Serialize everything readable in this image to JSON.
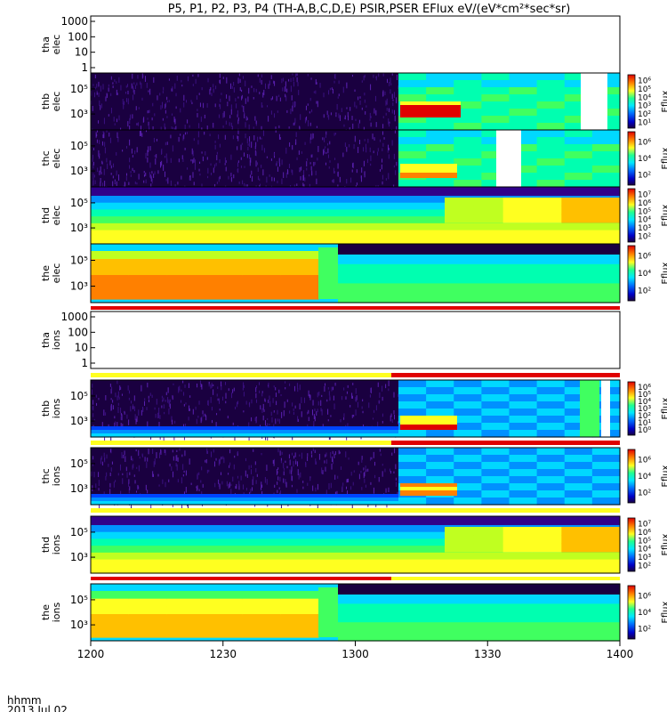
{
  "title": "P5, P1, P2, P3, P4 (TH-A,B,C,D,E) PSIR,PSER EFlux eV/(eV*cm²*sec*sr)",
  "footer": {
    "time_format": "hhmm",
    "date": "2013 Jul 02"
  },
  "x_axis": {
    "ticks": [
      "1200",
      "1230",
      "1300",
      "1330",
      "1400"
    ]
  },
  "colorbar_label": "Eflux",
  "chart_data": [
    {
      "type": "heatmap",
      "probe": "tha",
      "species": "elec",
      "ylabel_lines": [
        "tha",
        "elec"
      ],
      "yticks": [
        "1",
        "10",
        "100",
        "1000"
      ],
      "has_data": false
    },
    {
      "type": "heatmap",
      "probe": "thb",
      "species": "elec",
      "ylabel_lines": [
        "thb",
        "elec"
      ],
      "yticks": [
        "10³",
        "10⁵"
      ],
      "colorbar_ticks": [
        "10¹",
        "10²",
        "10³",
        "10⁴",
        "10⁵",
        "10⁶"
      ],
      "has_data": true
    },
    {
      "type": "heatmap",
      "probe": "thc",
      "species": "elec",
      "ylabel_lines": [
        "thc",
        "elec"
      ],
      "yticks": [
        "10³",
        "10⁵"
      ],
      "colorbar_ticks": [
        "10²",
        "10⁴",
        "10⁶"
      ],
      "has_data": true
    },
    {
      "type": "heatmap",
      "probe": "thd",
      "species": "elec",
      "ylabel_lines": [
        "thd",
        "elec"
      ],
      "yticks": [
        "10³",
        "10⁵"
      ],
      "colorbar_ticks": [
        "10²",
        "10³",
        "10⁴",
        "10⁵",
        "10⁶",
        "10⁷"
      ],
      "has_data": true
    },
    {
      "type": "heatmap",
      "probe": "the",
      "species": "elec",
      "ylabel_lines": [
        "the",
        "elec"
      ],
      "yticks": [
        "10³",
        "10⁵"
      ],
      "colorbar_ticks": [
        "10²",
        "10⁴",
        "10⁶"
      ],
      "has_data": true
    },
    {
      "type": "heatmap",
      "probe": "tha",
      "species": "ions",
      "ylabel_lines": [
        "tha",
        "ions"
      ],
      "yticks": [
        "1",
        "10",
        "100",
        "1000"
      ],
      "has_data": false
    },
    {
      "type": "heatmap",
      "probe": "thb",
      "species": "ions",
      "ylabel_lines": [
        "thb",
        "ions"
      ],
      "yticks": [
        "10³",
        "10⁵"
      ],
      "colorbar_ticks": [
        "10⁰",
        "10¹",
        "10²",
        "10³",
        "10⁴",
        "10⁵",
        "10⁶"
      ],
      "has_data": true
    },
    {
      "type": "heatmap",
      "probe": "thc",
      "species": "ions",
      "ylabel_lines": [
        "thc",
        "ions"
      ],
      "yticks": [
        "10³",
        "10⁵"
      ],
      "colorbar_ticks": [
        "10²",
        "10⁴",
        "10⁶"
      ],
      "has_data": true
    },
    {
      "type": "heatmap",
      "probe": "thd",
      "species": "ions",
      "ylabel_lines": [
        "thd",
        "ions"
      ],
      "yticks": [
        "10³",
        "10⁵"
      ],
      "colorbar_ticks": [
        "10²",
        "10³",
        "10⁴",
        "10⁵",
        "10⁶",
        "10⁷"
      ],
      "has_data": true
    },
    {
      "type": "heatmap",
      "probe": "the",
      "species": "ions",
      "ylabel_lines": [
        "the",
        "ions"
      ],
      "yticks": [
        "10³",
        "10⁵"
      ],
      "colorbar_ticks": [
        "10²",
        "10⁴",
        "10⁶"
      ],
      "has_data": true
    }
  ]
}
